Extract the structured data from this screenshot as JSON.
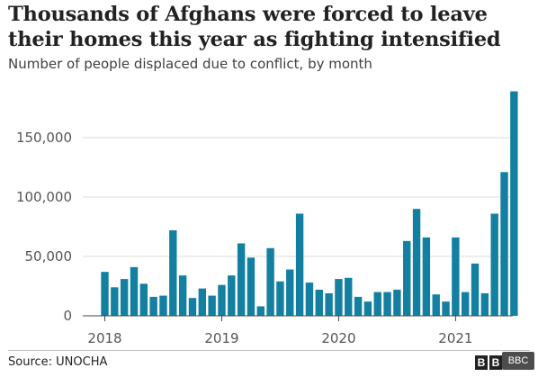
{
  "chart_data": {
    "type": "bar",
    "title": "Thousands of Afghans were forced to leave their homes this year as fighting intensified",
    "subtitle": "Number of people displaced due to conflict, by month",
    "xlabel": "",
    "ylabel": "",
    "ylim": [
      0,
      200000
    ],
    "yticks": [
      0,
      50000,
      100000,
      150000
    ],
    "ytick_labels": [
      "0",
      "50,000",
      "100,000",
      "150,000"
    ],
    "xtick_labels": [
      "2018",
      "2019",
      "2020",
      "2021"
    ],
    "grid": true,
    "color": "#1380A1",
    "categories": [
      "Jan 2018",
      "Feb 2018",
      "Mar 2018",
      "Apr 2018",
      "May 2018",
      "Jun 2018",
      "Jul 2018",
      "Aug 2018",
      "Sep 2018",
      "Oct 2018",
      "Nov 2018",
      "Dec 2018",
      "Jan 2019",
      "Feb 2019",
      "Mar 2019",
      "Apr 2019",
      "May 2019",
      "Jun 2019",
      "Jul 2019",
      "Aug 2019",
      "Sep 2019",
      "Oct 2019",
      "Nov 2019",
      "Dec 2019",
      "Jan 2020",
      "Feb 2020",
      "Mar 2020",
      "Apr 2020",
      "May 2020",
      "Jun 2020",
      "Jul 2020",
      "Aug 2020",
      "Sep 2020",
      "Oct 2020",
      "Nov 2020",
      "Dec 2020",
      "Jan 2021",
      "Feb 2021",
      "Mar 2021",
      "Apr 2021",
      "May 2021",
      "Jun 2021",
      "Jul 2021"
    ],
    "values": [
      37000,
      24000,
      31000,
      41000,
      27000,
      16000,
      17000,
      72000,
      34000,
      15000,
      23000,
      17000,
      26000,
      34000,
      61000,
      49000,
      8000,
      57000,
      29000,
      39000,
      86000,
      28000,
      22000,
      19000,
      31000,
      32000,
      16000,
      12000,
      20000,
      20000,
      22000,
      63000,
      90000,
      66000,
      18000,
      12000,
      66000,
      20000,
      44000,
      19000,
      86000,
      121000,
      189000
    ]
  },
  "footer": {
    "source": "Source: UNOCHA",
    "logo_letters": [
      "B",
      "B",
      "C"
    ],
    "watermark": "BBC"
  }
}
